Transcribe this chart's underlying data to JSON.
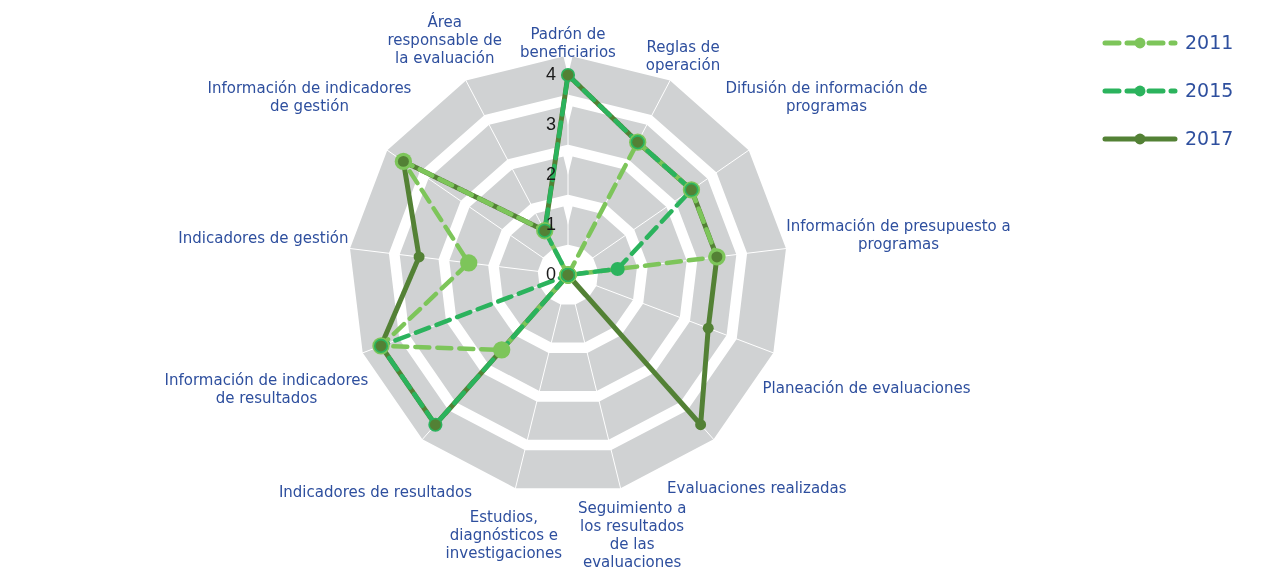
{
  "chart_data": {
    "type": "radar",
    "categories": [
      "Padrón de beneficiarios",
      "Reglas de operación",
      "Difusión de información de programas",
      "Información de presupuesto a programas",
      "Planeación de evaluaciones",
      "Evaluaciones realizadas",
      "Seguimiento a los resultados de las evaluaciones",
      "Estudios, diagnósticos e investigaciones",
      "Indicadores de resultados",
      "Información de indicadores de resultados",
      "Indicadores de gestión",
      "Información de indicadores de gestión",
      "Área responsable de la evaluación"
    ],
    "series": [
      {
        "name": "2011",
        "color": "#7dc55a",
        "line_style": "dashed",
        "values": [
          0,
          3,
          3,
          3,
          0,
          0,
          0,
          0,
          2,
          4,
          2,
          4,
          1
        ]
      },
      {
        "name": "2015",
        "color": "#2bb35d",
        "line_style": "dashed",
        "values": [
          4,
          3,
          3,
          1,
          0,
          0,
          0,
          0,
          4,
          4,
          0,
          0,
          1
        ]
      },
      {
        "name": "2017",
        "color": "#538135",
        "line_style": "solid",
        "values": [
          4,
          3,
          3,
          3,
          3,
          4,
          0,
          0,
          4,
          4,
          3,
          4,
          1
        ]
      }
    ],
    "ylim": [
      0,
      4
    ],
    "yticks": [
      0,
      1,
      2,
      3,
      4
    ],
    "grid": true,
    "marker": "circle",
    "legend": "top right"
  }
}
